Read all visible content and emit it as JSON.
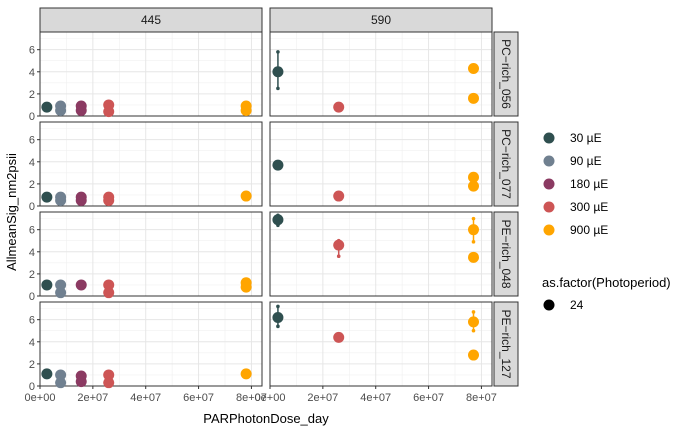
{
  "chart_data": {
    "type": "scatter",
    "xlabel": "PARPhotonDose_day",
    "ylabel": "AllmeanSig_nm2psii",
    "xlim": [
      0,
      84000000
    ],
    "ylim": [
      0,
      7.6
    ],
    "x_ticks": [
      0,
      20000000,
      40000000,
      60000000,
      80000000
    ],
    "x_tick_labels": [
      "0e+00",
      "2e+07",
      "4e+07",
      "6e+07",
      "8e+07"
    ],
    "y_ticks": [
      0,
      2,
      4,
      6
    ],
    "y_tick_labels": [
      "0",
      "2",
      "4",
      "6"
    ],
    "column_strips": [
      "445",
      "590"
    ],
    "row_strips": [
      "PC−rich_056",
      "PC−rich_077",
      "PE−rich_048",
      "PE−rich_127"
    ],
    "grid": true,
    "legend_placement": "right",
    "legend_color": {
      "title": "",
      "entries": [
        {
          "label": " 30 µE",
          "color": "#2F4F4F"
        },
        {
          "label": " 90 µE",
          "color": "#708090"
        },
        {
          "label": "180 µE",
          "color": "#8B3A62"
        },
        {
          "label": "300 µE",
          "color": "#CD5555"
        },
        {
          "label": "900 µE",
          "color": "#FFA500"
        }
      ]
    },
    "legend_shape": {
      "title": "as.factor(Photoperiod)",
      "entries": [
        {
          "label": "24"
        }
      ]
    },
    "panels": [
      {
        "row": 0,
        "col": 0,
        "points": [
          {
            "level": 0,
            "x": 2600000,
            "y": 0.8
          },
          {
            "level": 1,
            "x": 7800000,
            "y": 0.9
          },
          {
            "level": 1,
            "x": 7800000,
            "y": 0.5
          },
          {
            "level": 2,
            "x": 15600000,
            "y": 0.9
          },
          {
            "level": 2,
            "x": 15600000,
            "y": 0.5
          },
          {
            "level": 3,
            "x": 26000000,
            "y": 1.0
          },
          {
            "level": 3,
            "x": 26000000,
            "y": 0.4
          },
          {
            "level": 4,
            "x": 78000000,
            "y": 0.9
          },
          {
            "level": 4,
            "x": 78000000,
            "y": 0.5
          }
        ]
      },
      {
        "row": 0,
        "col": 1,
        "points": [
          {
            "level": 0,
            "x": 3000000,
            "y": 4.0,
            "ymin": 2.5,
            "ymax": 5.8
          },
          {
            "level": 3,
            "x": 26000000,
            "y": 0.8
          },
          {
            "level": 4,
            "x": 77000000,
            "y": 4.3
          },
          {
            "level": 4,
            "x": 77000000,
            "y": 1.6
          }
        ]
      },
      {
        "row": 1,
        "col": 0,
        "points": [
          {
            "level": 0,
            "x": 2600000,
            "y": 0.8
          },
          {
            "level": 1,
            "x": 7800000,
            "y": 0.8
          },
          {
            "level": 1,
            "x": 7800000,
            "y": 0.5
          },
          {
            "level": 2,
            "x": 15600000,
            "y": 0.8
          },
          {
            "level": 2,
            "x": 15600000,
            "y": 0.5
          },
          {
            "level": 3,
            "x": 26000000,
            "y": 0.8
          },
          {
            "level": 3,
            "x": 26000000,
            "y": 0.5
          },
          {
            "level": 4,
            "x": 78000000,
            "y": 0.9
          }
        ]
      },
      {
        "row": 1,
        "col": 1,
        "points": [
          {
            "level": 0,
            "x": 3000000,
            "y": 3.7
          },
          {
            "level": 3,
            "x": 26000000,
            "y": 0.9
          },
          {
            "level": 4,
            "x": 77000000,
            "y": 2.6
          },
          {
            "level": 4,
            "x": 77000000,
            "y": 1.8
          }
        ]
      },
      {
        "row": 2,
        "col": 0,
        "points": [
          {
            "level": 0,
            "x": 2600000,
            "y": 1.0
          },
          {
            "level": 1,
            "x": 7800000,
            "y": 1.0
          },
          {
            "level": 1,
            "x": 7800000,
            "y": 0.3
          },
          {
            "level": 2,
            "x": 15600000,
            "y": 1.0
          },
          {
            "level": 3,
            "x": 26000000,
            "y": 1.0
          },
          {
            "level": 3,
            "x": 26000000,
            "y": 0.3
          },
          {
            "level": 4,
            "x": 78000000,
            "y": 1.2
          },
          {
            "level": 4,
            "x": 78000000,
            "y": 0.8
          }
        ]
      },
      {
        "row": 2,
        "col": 1,
        "points": [
          {
            "level": 0,
            "x": 3000000,
            "y": 6.9,
            "ymin": 6.4,
            "ymax": 7.3
          },
          {
            "level": 3,
            "x": 26000000,
            "y": 4.6,
            "ymin": 3.6,
            "ymax": 5.0
          },
          {
            "level": 4,
            "x": 77000000,
            "y": 6.0,
            "ymin": 4.9,
            "ymax": 7.0
          },
          {
            "level": 4,
            "x": 77000000,
            "y": 3.5
          }
        ]
      },
      {
        "row": 3,
        "col": 0,
        "points": [
          {
            "level": 0,
            "x": 2600000,
            "y": 1.1
          },
          {
            "level": 1,
            "x": 7800000,
            "y": 1.0
          },
          {
            "level": 1,
            "x": 7800000,
            "y": 0.3
          },
          {
            "level": 2,
            "x": 15600000,
            "y": 0.9
          },
          {
            "level": 2,
            "x": 15600000,
            "y": 0.4
          },
          {
            "level": 3,
            "x": 26000000,
            "y": 1.0
          },
          {
            "level": 3,
            "x": 26000000,
            "y": 0.3
          },
          {
            "level": 4,
            "x": 78000000,
            "y": 1.1
          }
        ]
      },
      {
        "row": 3,
        "col": 1,
        "points": [
          {
            "level": 0,
            "x": 3000000,
            "y": 6.2,
            "ymin": 5.4,
            "ymax": 7.2
          },
          {
            "level": 3,
            "x": 26000000,
            "y": 4.4
          },
          {
            "level": 4,
            "x": 77000000,
            "y": 5.8,
            "ymin": 5.0,
            "ymax": 6.7
          },
          {
            "level": 4,
            "x": 77000000,
            "y": 2.8
          }
        ]
      }
    ]
  }
}
